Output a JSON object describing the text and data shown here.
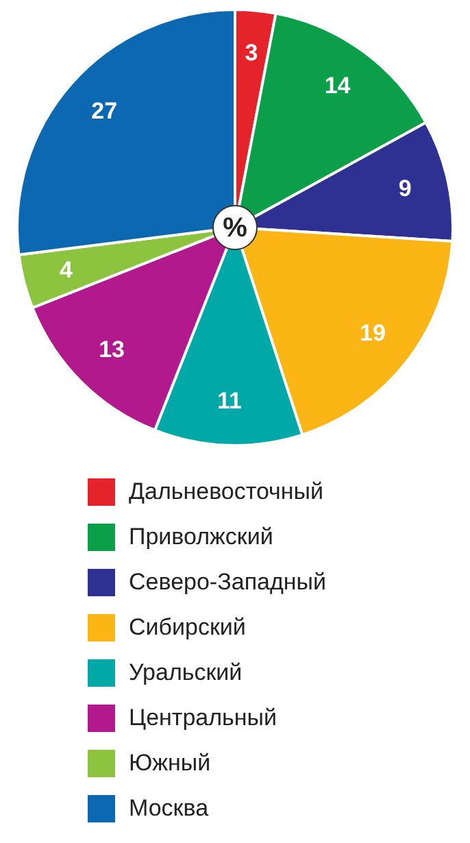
{
  "chart_data": {
    "type": "pie",
    "categories": [
      "Дальневосточный",
      "Приволжский",
      "Северо-Западный",
      "Сибирский",
      "Уральский",
      "Центральный",
      "Южный",
      "Москва"
    ],
    "values": [
      3,
      14,
      9,
      19,
      11,
      13,
      4,
      27
    ],
    "colors": [
      "#e5232a",
      "#0b9f4a",
      "#2e3191",
      "#fbb616",
      "#00a9a7",
      "#b1198d",
      "#8cc43f",
      "#0c68b1"
    ],
    "data_labels": true,
    "legend": "bottom",
    "annotations": [
      "%"
    ]
  }
}
